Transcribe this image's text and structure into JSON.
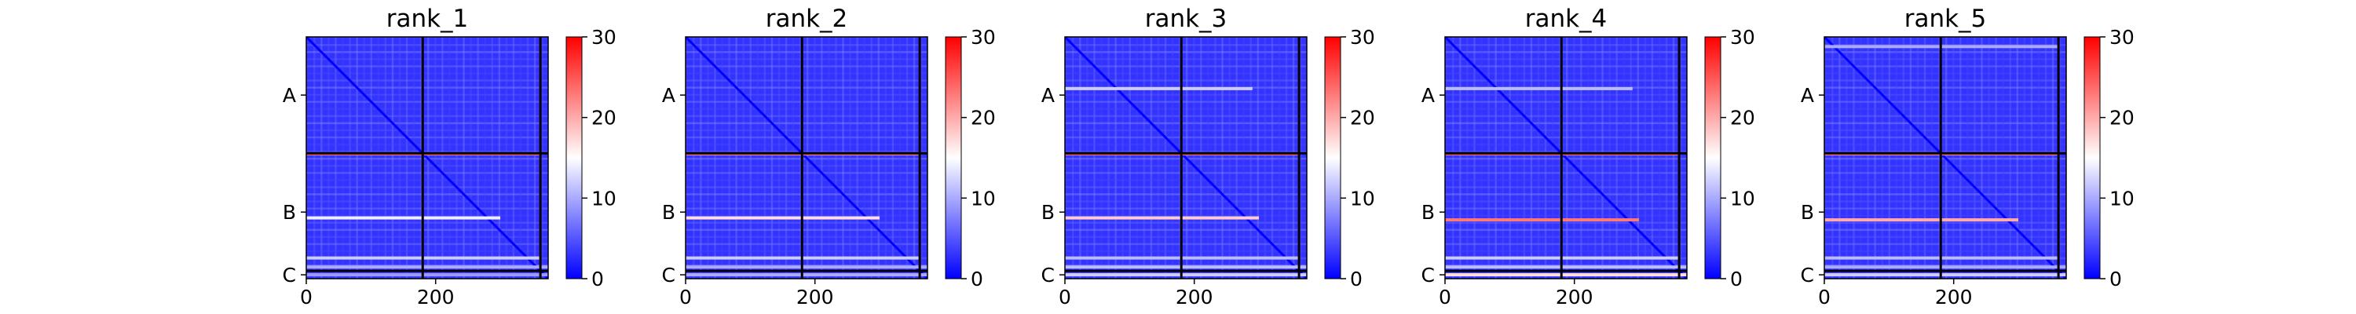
{
  "figure": {
    "colormap": "bwr",
    "colormap_colors": [
      "#0000ff",
      "#ffffff",
      "#ff0000"
    ],
    "frame_color": "#000000"
  },
  "chart_data": [
    {
      "type": "heatmap",
      "title": "rank_1",
      "xlabel": "",
      "ylabel": "",
      "x_ticks": [
        0,
        200
      ],
      "xlim": [
        0,
        374
      ],
      "y_tick_labels": [
        "A",
        "B",
        "C"
      ],
      "chain_boundaries": [
        0,
        180,
        362,
        374
      ],
      "colorbar": {
        "range": [
          0,
          30
        ],
        "ticks": [
          0,
          10,
          20,
          30
        ]
      },
      "bright_rows": [
        {
          "row": 181,
          "value": 24,
          "x_range": [
            0,
            362
          ]
        },
        {
          "row": 280,
          "value": 14,
          "x_range": [
            0,
            300
          ]
        },
        {
          "row": 342,
          "value": 12,
          "x_range": [
            0,
            362
          ]
        },
        {
          "row": 356,
          "value": 10,
          "x_range": [
            0,
            374
          ]
        },
        {
          "row": 368,
          "value": 9,
          "x_range": [
            0,
            374
          ]
        }
      ]
    },
    {
      "type": "heatmap",
      "title": "rank_2",
      "xlabel": "",
      "ylabel": "",
      "x_ticks": [
        0,
        200
      ],
      "xlim": [
        0,
        374
      ],
      "y_tick_labels": [
        "A",
        "B",
        "C"
      ],
      "chain_boundaries": [
        0,
        180,
        362,
        374
      ],
      "colorbar": {
        "range": [
          0,
          30
        ],
        "ticks": [
          0,
          10,
          20,
          30
        ]
      },
      "bright_rows": [
        {
          "row": 181,
          "value": 23,
          "x_range": [
            0,
            362
          ]
        },
        {
          "row": 280,
          "value": 17,
          "x_range": [
            0,
            300
          ]
        },
        {
          "row": 342,
          "value": 12,
          "x_range": [
            0,
            362
          ]
        },
        {
          "row": 356,
          "value": 10,
          "x_range": [
            0,
            374
          ]
        },
        {
          "row": 368,
          "value": 10,
          "x_range": [
            0,
            374
          ]
        }
      ]
    },
    {
      "type": "heatmap",
      "title": "rank_3",
      "xlabel": "",
      "ylabel": "",
      "x_ticks": [
        0,
        200
      ],
      "xlim": [
        0,
        374
      ],
      "y_tick_labels": [
        "A",
        "B",
        "C"
      ],
      "chain_boundaries": [
        0,
        180,
        362,
        374
      ],
      "colorbar": {
        "range": [
          0,
          30
        ],
        "ticks": [
          0,
          10,
          20,
          30
        ]
      },
      "bright_rows": [
        {
          "row": 80,
          "value": 12,
          "x_range": [
            0,
            290
          ]
        },
        {
          "row": 181,
          "value": 24,
          "x_range": [
            0,
            362
          ]
        },
        {
          "row": 280,
          "value": 18,
          "x_range": [
            0,
            300
          ]
        },
        {
          "row": 342,
          "value": 11,
          "x_range": [
            0,
            362
          ]
        },
        {
          "row": 356,
          "value": 11,
          "x_range": [
            0,
            374
          ]
        },
        {
          "row": 368,
          "value": 12,
          "x_range": [
            0,
            374
          ]
        }
      ]
    },
    {
      "type": "heatmap",
      "title": "rank_4",
      "xlabel": "",
      "ylabel": "",
      "x_ticks": [
        0,
        200
      ],
      "xlim": [
        0,
        374
      ],
      "y_tick_labels": [
        "A",
        "B",
        "C"
      ],
      "chain_boundaries": [
        0,
        180,
        362,
        374
      ],
      "colorbar": {
        "range": [
          0,
          30
        ],
        "ticks": [
          0,
          10,
          20,
          30
        ]
      },
      "bright_rows": [
        {
          "row": 80,
          "value": 11,
          "x_range": [
            0,
            290
          ]
        },
        {
          "row": 181,
          "value": 24,
          "x_range": [
            0,
            362
          ]
        },
        {
          "row": 283,
          "value": 23,
          "x_range": [
            0,
            300
          ]
        },
        {
          "row": 342,
          "value": 12,
          "x_range": [
            0,
            362
          ]
        },
        {
          "row": 356,
          "value": 11,
          "x_range": [
            0,
            374
          ]
        },
        {
          "row": 368,
          "value": 17,
          "x_range": [
            0,
            374
          ]
        }
      ]
    },
    {
      "type": "heatmap",
      "title": "rank_5",
      "xlabel": "",
      "ylabel": "",
      "x_ticks": [
        0,
        200
      ],
      "xlim": [
        0,
        374
      ],
      "y_tick_labels": [
        "A",
        "B",
        "C"
      ],
      "chain_boundaries": [
        0,
        180,
        362,
        374
      ],
      "colorbar": {
        "range": [
          0,
          30
        ],
        "ticks": [
          0,
          10,
          20,
          30
        ]
      },
      "bright_rows": [
        {
          "row": 15,
          "value": 10,
          "x_range": [
            0,
            362
          ]
        },
        {
          "row": 181,
          "value": 23,
          "x_range": [
            0,
            362
          ]
        },
        {
          "row": 283,
          "value": 20,
          "x_range": [
            0,
            300
          ]
        },
        {
          "row": 342,
          "value": 11,
          "x_range": [
            0,
            362
          ]
        },
        {
          "row": 356,
          "value": 10,
          "x_range": [
            0,
            374
          ]
        },
        {
          "row": 368,
          "value": 12,
          "x_range": [
            0,
            374
          ]
        }
      ]
    }
  ]
}
